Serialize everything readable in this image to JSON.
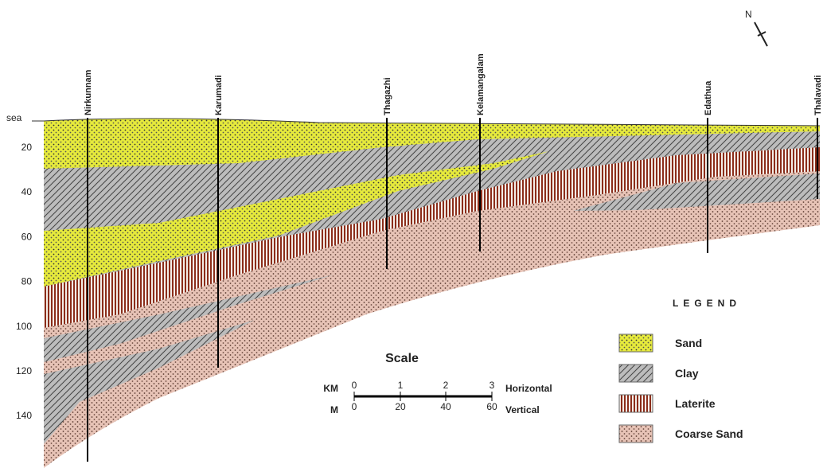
{
  "diagram": {
    "depth_axis": {
      "top_label": "sea",
      "labels": [
        20,
        40,
        60,
        80,
        100,
        120,
        140
      ]
    },
    "boreholes": [
      "Nirkunnam",
      "Karumadi",
      "Thagazhi",
      "Kelamangalam",
      "Edathua",
      "Thalavadi"
    ],
    "north": "N",
    "legend": {
      "title": "LEGEND",
      "items": [
        "Sand",
        "Clay",
        "Laterite",
        "Coarse Sand"
      ]
    },
    "scale": {
      "title": "Scale",
      "horizontal": {
        "unit": "KM",
        "ticks": [
          0,
          1,
          2,
          3
        ],
        "label": "Horizontal"
      },
      "vertical": {
        "unit": "M",
        "ticks": [
          0,
          20,
          40,
          60
        ],
        "label": "Vertical"
      }
    }
  }
}
